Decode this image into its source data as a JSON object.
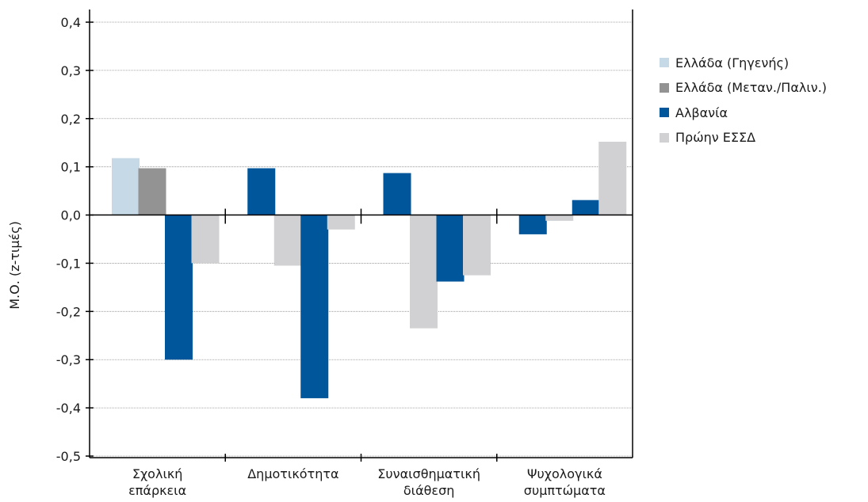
{
  "chart_data": {
    "type": "bar",
    "ylabel": "Μ.Ο. (z-τιμές)",
    "ylim": [
      -0.5,
      0.4
    ],
    "yticks": [
      "0,4",
      "0,3",
      "0,2",
      "0,1",
      "0,0",
      "-0,1",
      "-0,2",
      "-0,3",
      "-0,4",
      "-0,5"
    ],
    "categories": [
      [
        "Σχολική",
        "επάρκεια"
      ],
      [
        "Δημοτικότητα"
      ],
      [
        "Συναισθηματική",
        "διάθεση"
      ],
      [
        "Ψυχολογικά",
        "συμπτώματα"
      ]
    ],
    "series": [
      {
        "name": "Ελλάδα (Γηγενής)",
        "color": "#c5d9e6",
        "values": [
          0.118,
          0.0,
          0.0,
          0.0
        ]
      },
      {
        "name": "Ελλάδα (Μεταν./Παλιν.)",
        "color": "#939393",
        "values": [
          0.097,
          0.0,
          0.0,
          0.0
        ]
      },
      {
        "name": "Αλβανία",
        "color": "#00569a",
        "values": [
          -0.3,
          0.097,
          0.087,
          0.031
        ]
      },
      {
        "name": "Πρώην ΕΣΣΔ",
        "color": "#d1d1d3",
        "values": [
          -0.1,
          -0.105,
          -0.235,
          0.152
        ]
      }
    ],
    "bars": [
      {
        "category": 0,
        "series": 0,
        "value": 0.118
      },
      {
        "category": 0,
        "series": 1,
        "value": 0.097
      },
      {
        "category": 0,
        "series": 2,
        "value": -0.3
      },
      {
        "category": 0,
        "series": 3,
        "value": -0.1
      },
      {
        "category": 1,
        "series": 2,
        "value": 0.097
      },
      {
        "category": 1,
        "series": 3,
        "value": -0.105
      },
      {
        "category": 1,
        "series": 2,
        "value": -0.38
      },
      {
        "category": 1,
        "series": 3,
        "value": -0.03
      },
      {
        "category": 2,
        "series": 2,
        "value": 0.087
      },
      {
        "category": 2,
        "series": 3,
        "value": -0.235
      },
      {
        "category": 2,
        "series": 2,
        "value": -0.138
      },
      {
        "category": 2,
        "series": 3,
        "value": -0.125
      },
      {
        "category": 3,
        "series": 2,
        "value": -0.04
      },
      {
        "category": 3,
        "series": 3,
        "value": -0.012
      },
      {
        "category": 3,
        "series": 2,
        "value": 0.031
      },
      {
        "category": 3,
        "series": 3,
        "value": 0.152
      }
    ],
    "grid": true,
    "legend_position": "right"
  }
}
